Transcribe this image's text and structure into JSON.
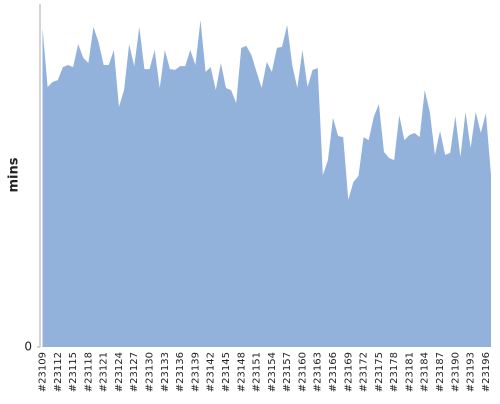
{
  "chart_data": {
    "type": "area",
    "y_label": "mins",
    "categories": [
      "#23109",
      null,
      null,
      "#23112",
      null,
      null,
      "#23115",
      null,
      null,
      "#23118",
      null,
      null,
      "#23121",
      null,
      null,
      "#23124",
      null,
      null,
      "#23127",
      null,
      null,
      "#23130",
      null,
      null,
      "#23133",
      null,
      null,
      "#23136",
      null,
      null,
      "#23139",
      null,
      null,
      "#23142",
      null,
      null,
      "#23145",
      null,
      null,
      "#23148",
      null,
      null,
      "#23151",
      null,
      null,
      "#23154",
      null,
      null,
      "#23157",
      null,
      null,
      "#23160",
      null,
      null,
      "#23163",
      null,
      null,
      "#23166",
      null,
      null,
      "#23169",
      null,
      null,
      "#23172",
      null,
      null,
      "#23175",
      null,
      null,
      "#23178",
      null,
      null,
      "#23181",
      null,
      null,
      "#23184",
      null,
      null,
      "#23187",
      null,
      null,
      "#23190",
      null,
      null,
      "#23193",
      null,
      null,
      "#23196",
      null
    ],
    "values": [
      93,
      75.8,
      77.3,
      77.8,
      81.6,
      82.2,
      81.6,
      88.3,
      84.3,
      82.8,
      93.3,
      88.9,
      82.2,
      82.2,
      86.6,
      70,
      74.9,
      88.3,
      81.9,
      93.3,
      81,
      81,
      86.6,
      75.5,
      86.6,
      81,
      80.8,
      81.9,
      81.9,
      86.6,
      82.2,
      95.3,
      80.2,
      81.6,
      74.9,
      82.8,
      75.5,
      74.9,
      71.1,
      87.2,
      87.8,
      85.1,
      80.2,
      75.5,
      83.1,
      80.2,
      87.2,
      87.5,
      93.9,
      82.2,
      75.5,
      86.6,
      75.8,
      80.8,
      81.3,
      50.1,
      54.5,
      66.8,
      61.5,
      61.2,
      42.9,
      48.1,
      49.9,
      61.2,
      60.3,
      67.1,
      70.8,
      56.9,
      55.1,
      54.5,
      67.6,
      60.3,
      61.8,
      62.4,
      61.2,
      74.9,
      68.5,
      56,
      63,
      56,
      56.6,
      67.3,
      55.4,
      68.5,
      58,
      68.5,
      62.4,
      68.2,
      50.1
    ],
    "color": "#92b2db",
    "ylim": [
      0,
      100
    ],
    "yticks": [
      0
    ]
  }
}
